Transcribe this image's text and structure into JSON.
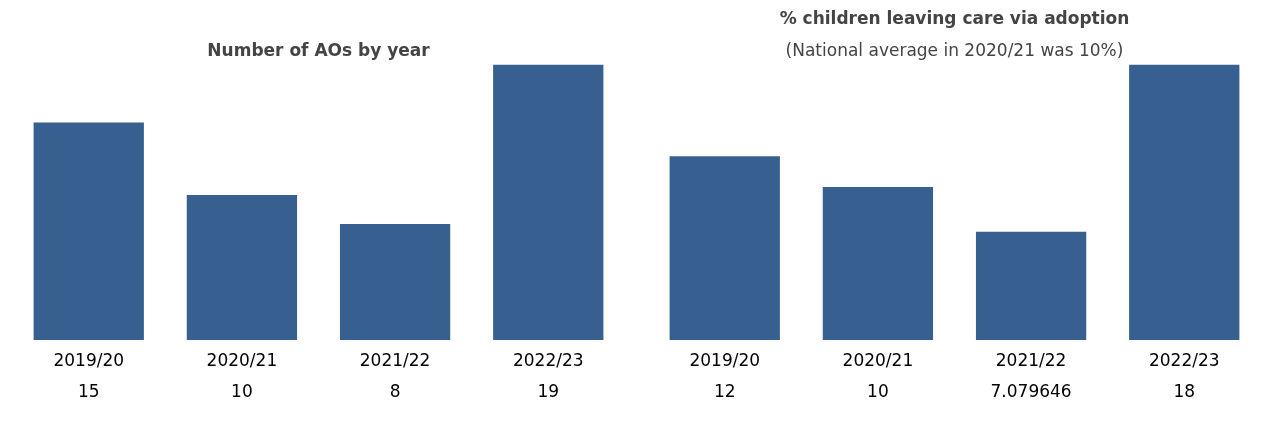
{
  "chart_data": [
    {
      "type": "bar",
      "title": "Number of AOs by year",
      "categories": [
        "2019/20",
        "2020/21",
        "2021/22",
        "2022/23"
      ],
      "values": [
        15,
        10,
        8,
        19
      ],
      "color": "#375f8f",
      "data_labels": true,
      "grid": false
    },
    {
      "type": "bar",
      "title": "% children leaving care via adoption",
      "subtitle": "(National average in 2020/21 was 10%)",
      "categories": [
        "2019/20",
        "2020/21",
        "2021/22",
        "2022/23"
      ],
      "values": [
        12,
        10,
        7.079646,
        18
      ],
      "color": "#375f8f",
      "data_labels": true,
      "grid": false
    }
  ]
}
